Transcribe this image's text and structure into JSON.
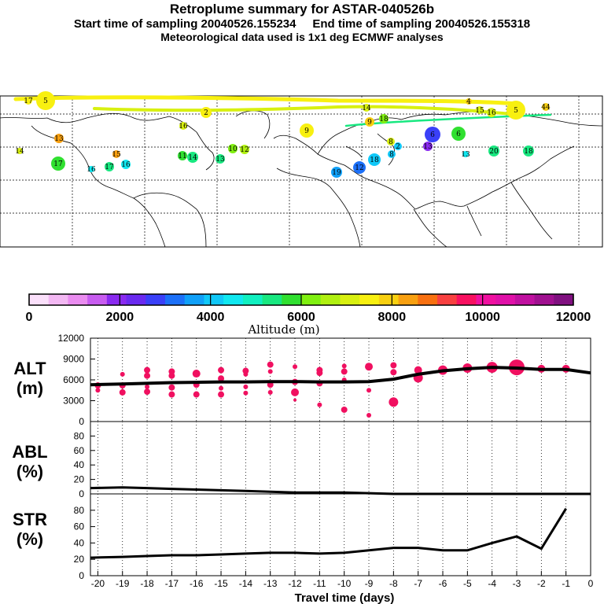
{
  "header": {
    "title": "Retroplume summary for ASTAR-040526b",
    "start_label": "Start time of sampling 20040526.155234",
    "end_label": "End time of sampling 20040526.155318",
    "met_label": "Meteorological data used is 1x1 deg ECMWF analyses"
  },
  "colorbar": {
    "title": "Altitude (m)",
    "tick_labels": [
      "0",
      "2000",
      "4000",
      "6000",
      "8000",
      "10000",
      "12000"
    ],
    "colors": [
      "#fbe0fb",
      "#f3b8f3",
      "#ea8cf0",
      "#c85cf0",
      "#8a2af0",
      "#6a2af0",
      "#3a40f8",
      "#1c70f8",
      "#10a0f8",
      "#10c8f8",
      "#10e8f0",
      "#10f0c0",
      "#18e880",
      "#30e030",
      "#80f010",
      "#b0f010",
      "#d8f010",
      "#f8f010",
      "#f8d010",
      "#f8a010",
      "#f87010",
      "#f84040",
      "#f81060",
      "#f010a0",
      "#e010a8",
      "#c010a0",
      "#a01090",
      "#801080"
    ]
  },
  "map": {
    "description_labels": [
      "17",
      "5",
      "14",
      "4",
      "15",
      "16",
      "2",
      "5",
      "44",
      "9",
      "9",
      "8",
      "18",
      "6",
      "6",
      "13",
      "16",
      "14",
      "20",
      "18",
      "2",
      "13",
      "13",
      "11",
      "14",
      "10",
      "12",
      "13",
      "8",
      "16",
      "19",
      "12",
      "18",
      "17",
      "16",
      "15",
      "17"
    ]
  },
  "axes": {
    "x_label": "Travel time (days)",
    "x_ticks": [
      "-20",
      "-19",
      "-18",
      "-17",
      "-16",
      "-15",
      "-14",
      "-13",
      "-12",
      "-11",
      "-10",
      "-9",
      "-8",
      "-7",
      "-6",
      "-5",
      "-4",
      "-3",
      "-2",
      "-1",
      "0"
    ],
    "alt_label_1": "ALT",
    "alt_label_2": "(m)",
    "abl_label_1": "ABL",
    "abl_label_2": "(%)",
    "str_label_1": "STR",
    "str_label_2": "(%)"
  },
  "chart_data": [
    {
      "type": "line",
      "title": "ALT",
      "ylabel": "Altitude (m)",
      "ylim": [
        0,
        12000
      ],
      "y_ticks": [
        "12000",
        "9000",
        "6000",
        "3000",
        "0"
      ],
      "x": [
        -20.3,
        -19,
        -18,
        -17,
        -16,
        -15,
        -14,
        -13,
        -12,
        -11,
        -10,
        -9,
        -8,
        -7,
        -6,
        -5,
        -4,
        -3,
        -2,
        -1,
        0
      ],
      "values": [
        5300,
        5400,
        5500,
        5600,
        5650,
        5700,
        5700,
        5750,
        5750,
        5700,
        5700,
        5750,
        6100,
        6800,
        7300,
        7600,
        7800,
        7700,
        7500,
        7500,
        7000
      ],
      "points": [
        {
          "x": -20,
          "y": 5200,
          "r": 4
        },
        {
          "x": -20,
          "y": 4500,
          "r": 3
        },
        {
          "x": -19,
          "y": 6800,
          "r": 3
        },
        {
          "x": -19,
          "y": 5200,
          "r": 4
        },
        {
          "x": -19,
          "y": 4200,
          "r": 4
        },
        {
          "x": -18,
          "y": 7400,
          "r": 4
        },
        {
          "x": -18,
          "y": 6600,
          "r": 4
        },
        {
          "x": -18,
          "y": 5000,
          "r": 3
        },
        {
          "x": -18,
          "y": 4300,
          "r": 4
        },
        {
          "x": -17,
          "y": 7200,
          "r": 4
        },
        {
          "x": -17,
          "y": 6600,
          "r": 4
        },
        {
          "x": -17,
          "y": 4900,
          "r": 4
        },
        {
          "x": -17,
          "y": 3900,
          "r": 4
        },
        {
          "x": -16,
          "y": 6900,
          "r": 5
        },
        {
          "x": -16,
          "y": 5300,
          "r": 4
        },
        {
          "x": -16,
          "y": 3900,
          "r": 4
        },
        {
          "x": -15,
          "y": 7400,
          "r": 4
        },
        {
          "x": -15,
          "y": 6200,
          "r": 4
        },
        {
          "x": -15,
          "y": 4800,
          "r": 3
        },
        {
          "x": -15,
          "y": 3900,
          "r": 4
        },
        {
          "x": -14,
          "y": 7300,
          "r": 4
        },
        {
          "x": -14,
          "y": 6800,
          "r": 3
        },
        {
          "x": -14,
          "y": 5000,
          "r": 3
        },
        {
          "x": -14,
          "y": 4100,
          "r": 3
        },
        {
          "x": -13,
          "y": 8200,
          "r": 4
        },
        {
          "x": -13,
          "y": 7200,
          "r": 3
        },
        {
          "x": -13,
          "y": 5300,
          "r": 4
        },
        {
          "x": -13,
          "y": 4200,
          "r": 3
        },
        {
          "x": -12,
          "y": 7900,
          "r": 3
        },
        {
          "x": -12,
          "y": 5700,
          "r": 4
        },
        {
          "x": -12,
          "y": 4200,
          "r": 5
        },
        {
          "x": -12,
          "y": 3100,
          "r": 2
        },
        {
          "x": -11,
          "y": 7400,
          "r": 4
        },
        {
          "x": -11,
          "y": 7000,
          "r": 4
        },
        {
          "x": -11,
          "y": 5500,
          "r": 4
        },
        {
          "x": -11,
          "y": 2400,
          "r": 3
        },
        {
          "x": -10,
          "y": 8000,
          "r": 3
        },
        {
          "x": -10,
          "y": 7200,
          "r": 4
        },
        {
          "x": -10,
          "y": 6000,
          "r": 3
        },
        {
          "x": -10,
          "y": 1700,
          "r": 4
        },
        {
          "x": -9,
          "y": 7900,
          "r": 5
        },
        {
          "x": -9,
          "y": 4500,
          "r": 3
        },
        {
          "x": -9,
          "y": 900,
          "r": 3
        },
        {
          "x": -8,
          "y": 8100,
          "r": 4
        },
        {
          "x": -8,
          "y": 7100,
          "r": 4
        },
        {
          "x": -8,
          "y": 2800,
          "r": 6
        },
        {
          "x": -7,
          "y": 7400,
          "r": 5
        },
        {
          "x": -7,
          "y": 6300,
          "r": 6
        },
        {
          "x": -6,
          "y": 7400,
          "r": 6
        },
        {
          "x": -5,
          "y": 7700,
          "r": 6
        },
        {
          "x": -4,
          "y": 7800,
          "r": 7
        },
        {
          "x": -3,
          "y": 7800,
          "r": 10
        },
        {
          "x": -2,
          "y": 7600,
          "r": 5
        },
        {
          "x": -1,
          "y": 7600,
          "r": 5
        }
      ]
    },
    {
      "type": "line",
      "title": "ABL",
      "ylabel": "ABL (%)",
      "ylim": [
        0,
        100
      ],
      "y_ticks": [
        "80",
        "60",
        "40",
        "20",
        "0"
      ],
      "x": [
        -20.3,
        -19,
        -18,
        -17,
        -16,
        -15,
        -14,
        -13,
        -12,
        -11,
        -10,
        -9,
        -8,
        -7,
        -6,
        -5,
        -4,
        -3,
        -2,
        -1,
        0
      ],
      "values": [
        8,
        9,
        8,
        7,
        6,
        5,
        4,
        3,
        2,
        2,
        2,
        1,
        0,
        0,
        0,
        0,
        0,
        0,
        0,
        0,
        0
      ]
    },
    {
      "type": "line",
      "title": "STR",
      "ylabel": "STR (%)",
      "ylim": [
        0,
        100
      ],
      "y_ticks": [
        "80",
        "60",
        "40",
        "20",
        "0"
      ],
      "x": [
        -20.3,
        -19,
        -18,
        -17,
        -16,
        -15,
        -14,
        -13,
        -12,
        -11,
        -10,
        -9,
        -8,
        -7,
        -6,
        -5,
        -4,
        -3,
        -2,
        -1
      ],
      "values": [
        22,
        23,
        24,
        25,
        25,
        26,
        27,
        28,
        28,
        27,
        28,
        31,
        34,
        34,
        31,
        31,
        40,
        48,
        33,
        82
      ]
    }
  ]
}
